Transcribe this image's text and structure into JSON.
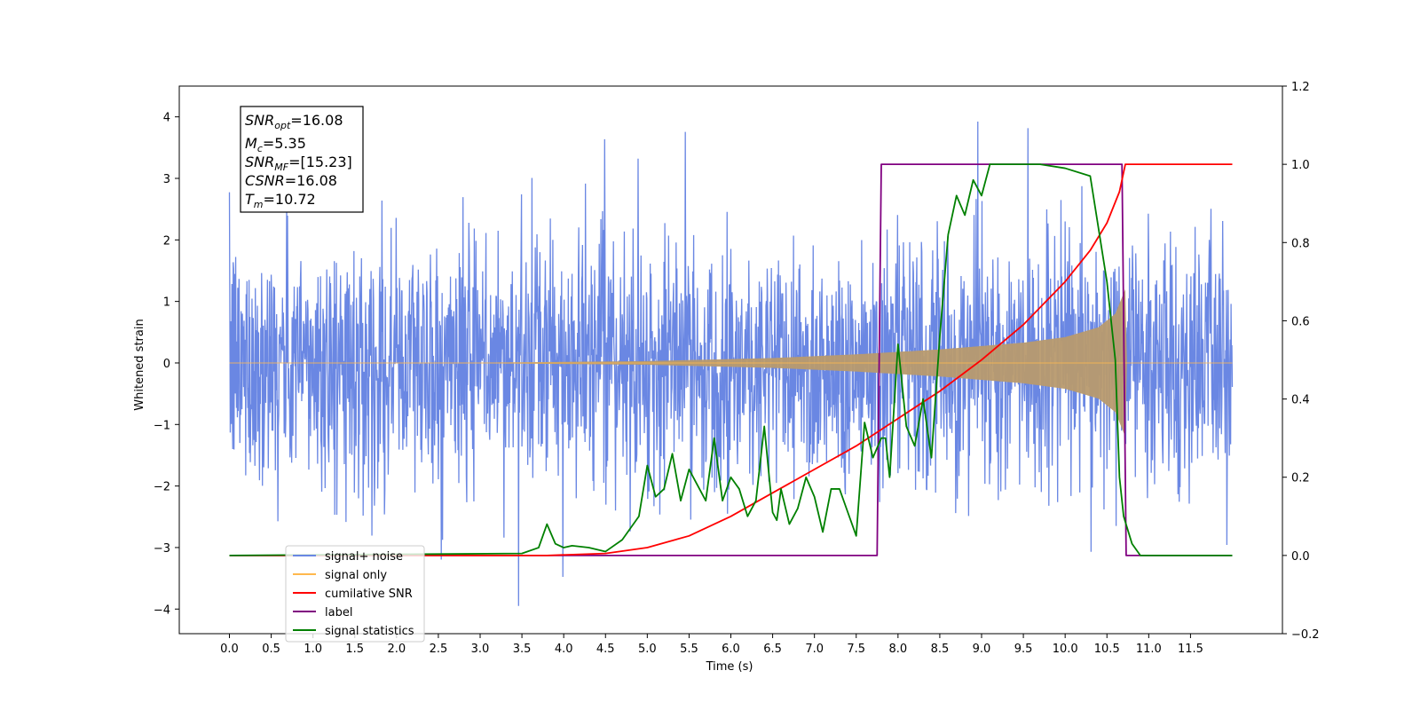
{
  "chart_data": {
    "type": "line",
    "xlabel": "Time (s)",
    "ylabel": "Whitened strain",
    "ylabel_right": "",
    "xlim": [
      -0.6,
      12.6
    ],
    "ylim": [
      -4.4,
      4.5
    ],
    "ylim_right": [
      -0.2,
      1.2
    ],
    "x_ticks": [
      "0.0",
      "0.5",
      "1.0",
      "1.5",
      "2.0",
      "2.5",
      "3.0",
      "3.5",
      "4.0",
      "4.5",
      "5.0",
      "5.5",
      "6.0",
      "6.5",
      "7.0",
      "7.5",
      "8.0",
      "8.5",
      "9.0",
      "9.5",
      "10.0",
      "10.5",
      "11.0",
      "11.5"
    ],
    "y_ticks_left": [
      "4",
      "3",
      "2",
      "1",
      "0",
      "−1",
      "−2",
      "−3",
      "−4"
    ],
    "y_ticks_right": [
      "1.2",
      "1.0",
      "0.8",
      "0.6",
      "0.4",
      "0.2",
      "0.0",
      "−0.2"
    ],
    "grid": false,
    "legend_placement": "lower-left",
    "annotation": {
      "SNR_opt": "16.08",
      "Mc": "5.35",
      "SNR_MF": "[15.23]",
      "CSNR": "16.08",
      "Tm": "10.72"
    },
    "series": [
      {
        "name": "signal+ noise",
        "axis": "left",
        "color": "#6a87e3",
        "description_values": "whitened gaussian noise of std ~1, range approx [-4, 4.1], x from 0.0 to 12.0"
      },
      {
        "name": "signal only",
        "axis": "left",
        "color": "#ffb84d",
        "envelope_x": [
          0.0,
          3.0,
          5.0,
          6.5,
          7.5,
          8.5,
          9.5,
          10.0,
          10.4,
          10.6,
          10.72,
          10.73,
          12.0
        ],
        "envelope_amp": [
          0.0,
          0.005,
          0.03,
          0.08,
          0.14,
          0.22,
          0.33,
          0.42,
          0.58,
          0.8,
          1.2,
          0.0,
          0.0
        ]
      },
      {
        "name": "cumilative SNR",
        "axis": "right",
        "color": "#ff0000",
        "x": [
          0.0,
          3.0,
          3.8,
          4.5,
          5.0,
          5.5,
          6.0,
          6.5,
          7.0,
          7.5,
          8.0,
          8.5,
          9.0,
          9.5,
          10.0,
          10.3,
          10.5,
          10.65,
          10.72,
          12.0
        ],
        "y": [
          0.0,
          0.0,
          0.0,
          0.005,
          0.02,
          0.05,
          0.1,
          0.16,
          0.22,
          0.28,
          0.35,
          0.42,
          0.5,
          0.59,
          0.7,
          0.78,
          0.85,
          0.93,
          1.0,
          1.0
        ]
      },
      {
        "name": "label",
        "axis": "right",
        "color": "#800080",
        "x": [
          0.0,
          7.75,
          7.8,
          10.68,
          10.73,
          12.0
        ],
        "y": [
          0.0,
          0.0,
          1.0,
          1.0,
          0.0,
          0.0
        ]
      },
      {
        "name": "signal statistics",
        "axis": "right",
        "color": "#008000",
        "x": [
          0.0,
          3.5,
          3.7,
          3.8,
          3.9,
          4.0,
          4.1,
          4.3,
          4.5,
          4.7,
          4.9,
          5.0,
          5.1,
          5.2,
          5.3,
          5.4,
          5.5,
          5.6,
          5.7,
          5.8,
          5.9,
          6.0,
          6.1,
          6.2,
          6.3,
          6.4,
          6.5,
          6.55,
          6.6,
          6.7,
          6.8,
          6.9,
          7.0,
          7.1,
          7.2,
          7.3,
          7.4,
          7.5,
          7.6,
          7.7,
          7.8,
          7.85,
          7.9,
          8.0,
          8.1,
          8.2,
          8.3,
          8.4,
          8.5,
          8.6,
          8.7,
          8.8,
          8.9,
          9.0,
          9.1,
          9.2,
          9.3,
          9.5,
          9.7,
          10.0,
          10.3,
          10.5,
          10.6,
          10.65,
          10.7,
          10.8,
          10.9,
          11.0,
          12.0
        ],
        "y": [
          0.0,
          0.005,
          0.02,
          0.08,
          0.03,
          0.02,
          0.025,
          0.02,
          0.01,
          0.04,
          0.1,
          0.23,
          0.15,
          0.17,
          0.26,
          0.14,
          0.22,
          0.18,
          0.14,
          0.3,
          0.14,
          0.2,
          0.17,
          0.1,
          0.14,
          0.33,
          0.11,
          0.09,
          0.17,
          0.08,
          0.12,
          0.2,
          0.15,
          0.06,
          0.17,
          0.17,
          0.11,
          0.05,
          0.34,
          0.25,
          0.3,
          0.3,
          0.2,
          0.54,
          0.33,
          0.28,
          0.4,
          0.25,
          0.56,
          0.82,
          0.92,
          0.87,
          0.96,
          0.92,
          1.0,
          1.0,
          1.0,
          1.0,
          1.0,
          0.99,
          0.97,
          0.7,
          0.5,
          0.2,
          0.1,
          0.03,
          0.0,
          0.0,
          0.0
        ]
      }
    ]
  }
}
